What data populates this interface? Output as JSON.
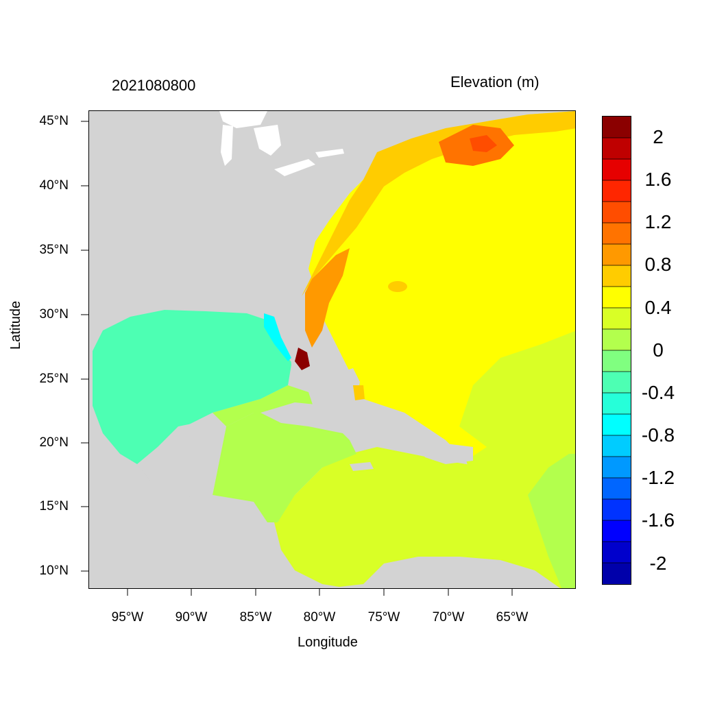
{
  "title": "2021080800",
  "units_label": "Elevation (m)",
  "axes": {
    "xlabel": "Longitude",
    "ylabel": "Latitude",
    "x_ticks": [
      "95°W",
      "90°W",
      "85°W",
      "80°W",
      "75°W",
      "70°W",
      "65°W"
    ],
    "y_ticks": [
      "45°N",
      "40°N",
      "35°N",
      "30°N",
      "25°N",
      "20°N",
      "15°N",
      "10°N"
    ],
    "lon_range": [
      -98,
      -60
    ],
    "lat_range": [
      8.5,
      46
    ]
  },
  "colorbar": {
    "labels": [
      "2",
      "1.6",
      "1.2",
      "0.8",
      "0.4",
      "0",
      "-0.4",
      "-0.8",
      "-1.2",
      "-1.6",
      "-2"
    ],
    "colors": [
      "#8b0000",
      "#bf0000",
      "#e60000",
      "#ff2600",
      "#ff4d00",
      "#ff7300",
      "#ff9900",
      "#ffcc00",
      "#ffff00",
      "#d9ff26",
      "#b3ff4d",
      "#80ff80",
      "#4dffb3",
      "#26ffd9",
      "#00ffff",
      "#00ccff",
      "#0099ff",
      "#0066ff",
      "#0033ff",
      "#0000ff",
      "#0000cc",
      "#0000aa"
    ]
  },
  "colors": {
    "land": "#d3d3d3",
    "lakes": "#ffffff"
  }
}
